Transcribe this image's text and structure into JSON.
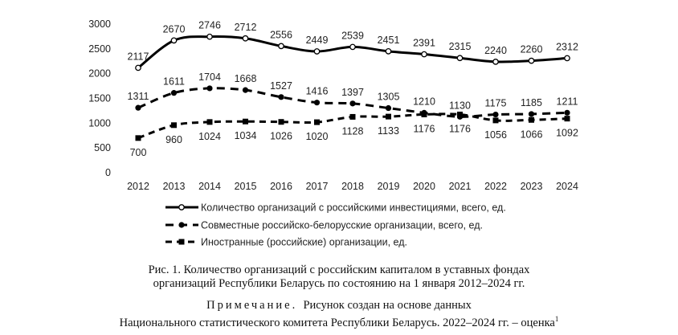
{
  "chart_data": {
    "type": "line",
    "x": [
      2012,
      2013,
      2014,
      2015,
      2016,
      2017,
      2018,
      2019,
      2020,
      2021,
      2022,
      2023,
      2024
    ],
    "ylim": [
      0,
      3000
    ],
    "yticks": [
      0,
      500,
      1000,
      1500,
      2000,
      2500,
      3000
    ],
    "grid": false,
    "legend_position": "bottom",
    "series": [
      {
        "name": "Количество организаций с российскими инвестициями, всего, ед.",
        "style": "solid-circle",
        "color": "#000000",
        "values": [
          2117,
          2670,
          2746,
          2712,
          2556,
          2449,
          2539,
          2451,
          2391,
          2315,
          2240,
          2260,
          2312
        ]
      },
      {
        "name": "Совместные российско-белорусские организации, всего, ед.",
        "style": "dashed-circle",
        "color": "#000000",
        "values": [
          1311,
          1611,
          1704,
          1668,
          1527,
          1416,
          1397,
          1305,
          1210,
          1130,
          1175,
          1185,
          1211
        ]
      },
      {
        "name": "Иностранные (российские) организации, ед.",
        "style": "dashed-square",
        "color": "#000000",
        "values": [
          700,
          960,
          1024,
          1034,
          1026,
          1020,
          1128,
          1133,
          1176,
          1176,
          1056,
          1066,
          1092
        ]
      }
    ]
  },
  "caption": {
    "line1": "Рис. 1. Количество организаций с российским капиталом в уставных фондах",
    "line2": "организаций Республики Беларусь по состоянию на 1 января 2012–2024 гг."
  },
  "note": {
    "label": "Примечание.",
    "line1": "Рисунок создан на основе данных",
    "line2": "Национального статистического комитета Республики Беларусь. 2022–2024 гг. – оценка",
    "footnote": "1"
  }
}
